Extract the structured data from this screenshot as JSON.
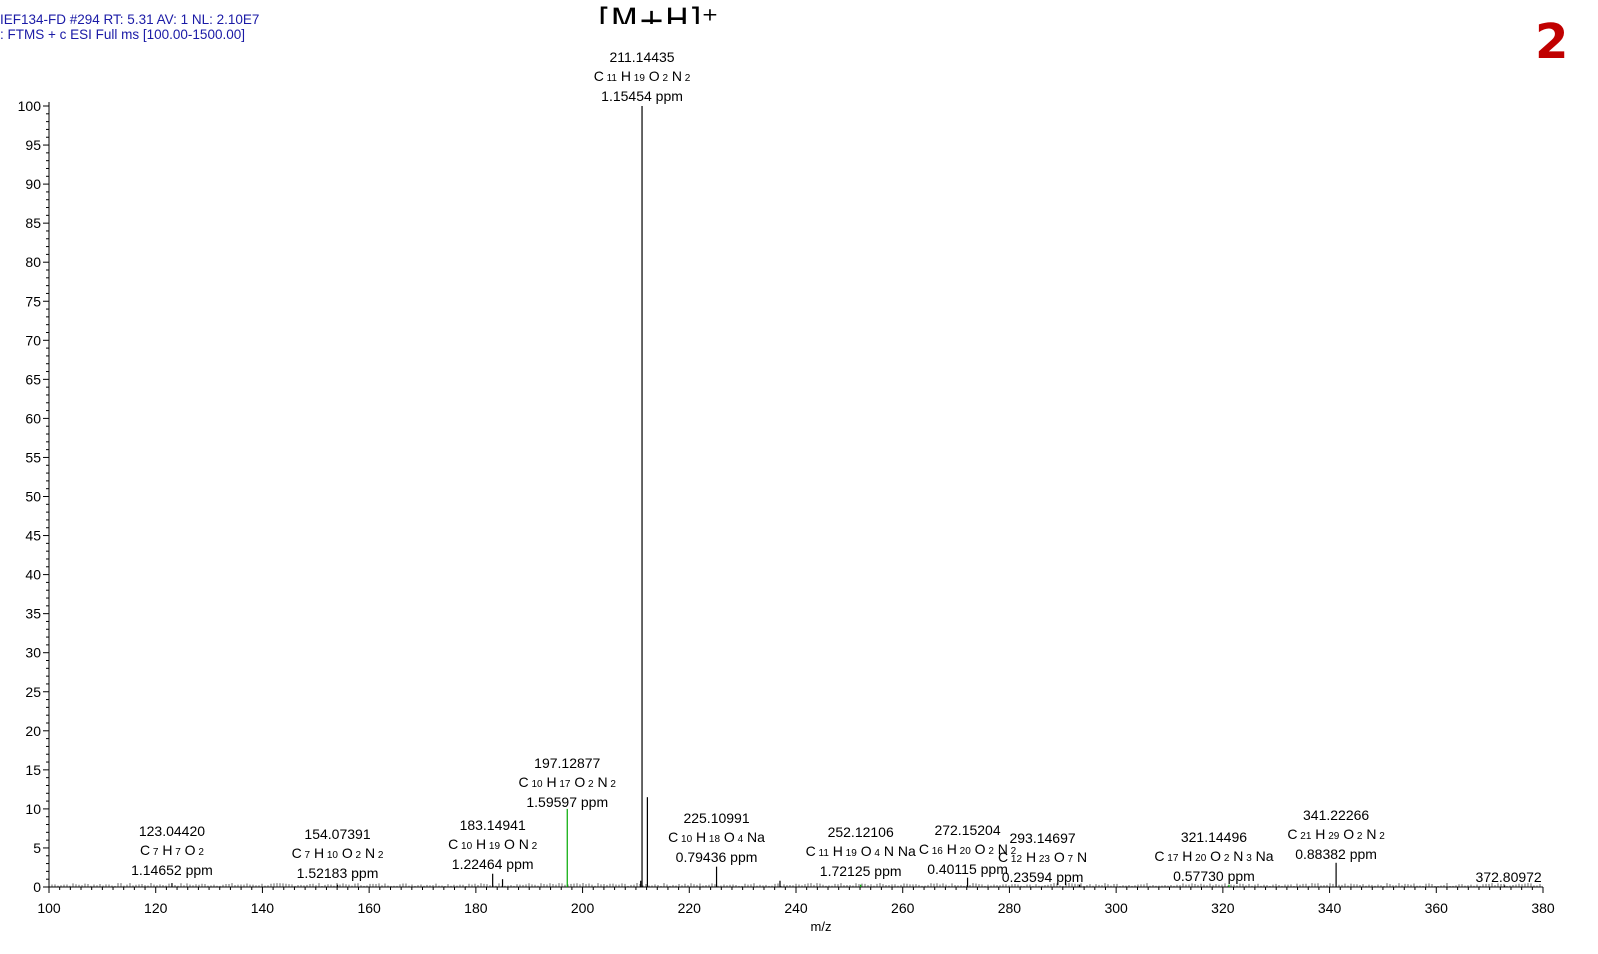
{
  "header": {
    "line1": "IEF134-FD #294   RT: 5.31   AV: 1   NL: 2.10E7",
    "line2": ": FTMS + c ESI Full ms [100.00-1500.00]"
  },
  "annotation_main": "[M+H]⁺",
  "panel_number": "2",
  "chart_data": {
    "type": "bar",
    "xlabel": "m/z",
    "ylabel": "",
    "xlim": [
      100,
      380
    ],
    "ylim": [
      0,
      100
    ],
    "x_ticks": [
      100,
      120,
      140,
      160,
      180,
      200,
      220,
      240,
      260,
      280,
      300,
      320,
      340,
      360,
      380
    ],
    "y_ticks": [
      0,
      5,
      10,
      15,
      20,
      25,
      30,
      35,
      40,
      45,
      50,
      55,
      60,
      65,
      70,
      75,
      80,
      85,
      90,
      95,
      100
    ],
    "peaks": [
      {
        "mz": 211.14435,
        "intensity": 100,
        "label": "211.14435",
        "formula": [
          [
            "C",
            "11"
          ],
          [
            "H",
            "19"
          ],
          [
            "O",
            "2"
          ],
          [
            "N",
            "2"
          ]
        ],
        "ppm": "1.15454 ppm",
        "color": "#000000"
      },
      {
        "mz": 212.1477,
        "intensity": 11.5,
        "color": "#000000"
      },
      {
        "mz": 210.9,
        "intensity": 0.8,
        "color": "#000000"
      },
      {
        "mz": 197.12877,
        "intensity": 10,
        "label": "197.12877",
        "formula": [
          [
            "C",
            "10"
          ],
          [
            "H",
            "17"
          ],
          [
            "O",
            "2"
          ],
          [
            "N",
            "2"
          ]
        ],
        "ppm": "1.59597 ppm",
        "color": "#00aa00"
      },
      {
        "mz": 123.0442,
        "intensity": 0.5,
        "label": "123.04420",
        "formula": [
          [
            "C",
            "7"
          ],
          [
            "H",
            "7"
          ],
          [
            "O",
            "2"
          ]
        ],
        "ppm": "1.14652 ppm",
        "color": "#000000"
      },
      {
        "mz": 154.07391,
        "intensity": 0.3,
        "label": "154.07391",
        "formula": [
          [
            "C",
            "7"
          ],
          [
            "H",
            "10"
          ],
          [
            "O",
            "2"
          ],
          [
            "N",
            "2"
          ]
        ],
        "ppm": "1.52183 ppm",
        "color": "#000000"
      },
      {
        "mz": 183.14941,
        "intensity": 1.7,
        "label": "183.14941",
        "formula": [
          [
            "C",
            "10"
          ],
          [
            "H",
            "19"
          ],
          [
            "O",
            ""
          ],
          [
            "N",
            "2"
          ]
        ],
        "ppm": "1.22464 ppm",
        "color": "#000000"
      },
      {
        "mz": 185.0,
        "intensity": 1.0,
        "color": "#000000"
      },
      {
        "mz": 225.10991,
        "intensity": 2.6,
        "label": "225.10991",
        "formula": [
          [
            "C",
            "10"
          ],
          [
            "H",
            "18"
          ],
          [
            "O",
            "4"
          ],
          [
            "Na",
            ""
          ]
        ],
        "ppm": "0.79436 ppm",
        "color": "#000000"
      },
      {
        "mz": 237.0,
        "intensity": 0.8,
        "color": "#000000"
      },
      {
        "mz": 252.12106,
        "intensity": 0.3,
        "label": "252.12106",
        "formula": [
          [
            "C",
            "11"
          ],
          [
            "H",
            "19"
          ],
          [
            "O",
            "4"
          ],
          [
            "N",
            ""
          ],
          [
            "Na",
            ""
          ]
        ],
        "ppm": "1.72125 ppm",
        "color": "#00aa00"
      },
      {
        "mz": 272.15204,
        "intensity": 1.2,
        "label": "272.15204",
        "formula": [
          [
            "C",
            "16"
          ],
          [
            "H",
            "20"
          ],
          [
            "O",
            "2"
          ],
          [
            "N",
            "2"
          ]
        ],
        "ppm": "0.40115 ppm",
        "color": "#000000"
      },
      {
        "mz": 293.14697,
        "intensity": 0.3,
        "label": "293.14697",
        "formula": [
          [
            "C",
            "12"
          ],
          [
            "H",
            "23"
          ],
          [
            "O",
            "7"
          ],
          [
            "N",
            ""
          ]
        ],
        "ppm": "0.23594 ppm",
        "color": "#000000"
      },
      {
        "mz": 321.14496,
        "intensity": 0.3,
        "label": "321.14496",
        "formula": [
          [
            "C",
            "17"
          ],
          [
            "H",
            "20"
          ],
          [
            "O",
            "2"
          ],
          [
            "N",
            "3"
          ],
          [
            "Na",
            ""
          ]
        ],
        "ppm": "0.57730 ppm",
        "color": "#00aa00"
      },
      {
        "mz": 341.22266,
        "intensity": 3.1,
        "label": "341.22266",
        "formula": [
          [
            "C",
            "21"
          ],
          [
            "H",
            "29"
          ],
          [
            "O",
            "2"
          ],
          [
            "N",
            "2"
          ]
        ],
        "ppm": "0.88382 ppm",
        "color": "#000000"
      },
      {
        "mz": 372.80972,
        "intensity": 0.2,
        "label": "372.80972",
        "color": "#000000"
      }
    ]
  }
}
